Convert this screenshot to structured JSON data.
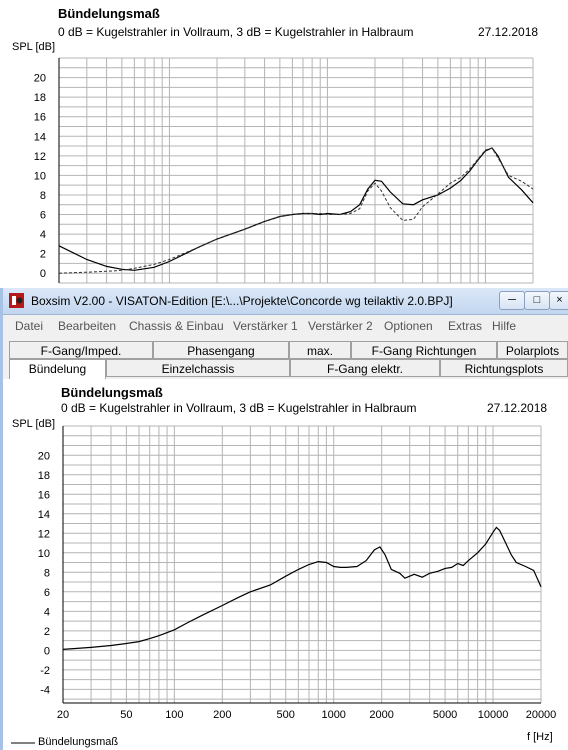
{
  "background_window": {
    "chart": {
      "title": "Bündelungsmaß",
      "subtitle": "0 dB = Kugelstrahler in Vollraum, 3 dB = Kugelstrahler in Halbraum",
      "date": "27.12.2018",
      "ylabel": "SPL [dB]"
    }
  },
  "front_window": {
    "title": "Boxsim V2.00 - VISATON-Edition [E:\\...\\Projekte\\Concorde wg teilaktiv 2.0.BPJ]",
    "buttons": {
      "minimize": "─",
      "maximize": "□",
      "close": "×"
    },
    "menu": [
      "Datei",
      "Bearbeiten",
      "Chassis & Einbau",
      "Verstärker 1",
      "Verstärker 2",
      "Optionen",
      "Extras",
      "Hilfe"
    ],
    "tabs_row1": [
      "F-Gang/Imped.",
      "Phasengang",
      "max. Pegel",
      "F-Gang Richtungen",
      "Polarplots"
    ],
    "tabs_row2": [
      "Bündelung",
      "Einzelchassis",
      "F-Gang elektr.",
      "Richtungsplots"
    ],
    "active_tab": "Bündelung",
    "chart": {
      "title": "Bündelungsmaß",
      "subtitle": "0 dB = Kugelstrahler in Vollraum, 3 dB = Kugelstrahler in Halbraum",
      "date": "27.12.2018",
      "ylabel": "SPL [dB]",
      "xlabel": "f [Hz]",
      "legend": "Bündelungsmaß"
    }
  },
  "chart_data": [
    {
      "type": "line",
      "title": "Bündelungsmaß",
      "ylabel": "SPL [dB]",
      "x_scale": "log",
      "xlim": [
        20,
        20000
      ],
      "ylim": [
        -1,
        22
      ],
      "y_ticks": [
        0,
        2,
        4,
        6,
        8,
        10,
        12,
        14,
        16,
        18,
        20
      ],
      "y_tick_labels": [
        "0",
        "2",
        "4",
        "6",
        "8",
        "10",
        "12",
        "14",
        "16",
        "18",
        "20"
      ],
      "grid": true,
      "series": [
        {
          "style": "solid",
          "x": [
            20,
            30,
            40,
            50,
            60,
            80,
            100,
            150,
            200,
            300,
            400,
            500,
            600,
            700,
            800,
            900,
            1000,
            1200,
            1400,
            1600,
            1800,
            2000,
            2200,
            2500,
            3000,
            3500,
            4000,
            5000,
            6000,
            7000,
            8000,
            9000,
            10000,
            11000,
            12000,
            14000,
            17000,
            20000
          ],
          "y": [
            2.8,
            1.4,
            0.7,
            0.4,
            0.3,
            0.6,
            1.2,
            2.6,
            3.5,
            4.5,
            5.3,
            5.8,
            6.0,
            6.1,
            6.1,
            6.0,
            6.1,
            6.0,
            6.3,
            7.0,
            8.6,
            9.5,
            9.4,
            8.3,
            7.1,
            7.0,
            7.5,
            8.0,
            8.7,
            9.5,
            10.5,
            11.6,
            12.5,
            12.8,
            12.0,
            9.8,
            8.5,
            7.2
          ]
        },
        {
          "style": "dashed",
          "x": [
            20,
            30,
            40,
            50,
            60,
            80,
            100,
            150,
            200,
            300,
            400,
            500,
            600,
            700,
            800,
            900,
            1000,
            1200,
            1400,
            1600,
            1800,
            2000,
            2200,
            2500,
            3000,
            3500,
            4000,
            5000,
            6000,
            7000,
            8000,
            9000,
            10000,
            11000,
            12000,
            14000,
            17000,
            20000
          ],
          "y": [
            0.0,
            0.1,
            0.2,
            0.3,
            0.5,
            0.9,
            1.4,
            2.6,
            3.5,
            4.5,
            5.3,
            5.8,
            6.0,
            6.1,
            6.1,
            6.1,
            6.0,
            6.0,
            6.1,
            6.6,
            8.4,
            9.2,
            8.4,
            6.7,
            5.4,
            5.5,
            6.8,
            8.1,
            9.2,
            9.8,
            10.7,
            11.7,
            12.6,
            12.8,
            11.8,
            10.0,
            9.4,
            8.6
          ]
        }
      ]
    },
    {
      "type": "line",
      "title": "Bündelungsmaß",
      "ylabel": "SPL [dB]",
      "xlabel": "f [Hz]",
      "x_scale": "log",
      "xlim": [
        20,
        20000
      ],
      "ylim": [
        -5.4,
        23
      ],
      "x_ticks": [
        20,
        50,
        100,
        200,
        500,
        1000,
        2000,
        5000,
        10000,
        20000
      ],
      "x_tick_labels": [
        "20",
        "50",
        "100",
        "200",
        "500",
        "1000",
        "2000",
        "5000",
        "10000",
        "20000"
      ],
      "y_ticks": [
        -4,
        -2,
        0,
        2,
        4,
        6,
        8,
        10,
        12,
        14,
        16,
        18,
        20
      ],
      "y_tick_labels": [
        "-4",
        "-2",
        "0",
        "2",
        "4",
        "6",
        "8",
        "10",
        "12",
        "14",
        "16",
        "18",
        "20"
      ],
      "grid": true,
      "legend": "bottom-left",
      "series": [
        {
          "name": "Bündelungsmaß",
          "style": "solid",
          "x": [
            20,
            30,
            40,
            50,
            60,
            70,
            80,
            100,
            120,
            150,
            200,
            250,
            300,
            400,
            500,
            600,
            700,
            800,
            900,
            1000,
            1100,
            1200,
            1400,
            1600,
            1800,
            1950,
            2100,
            2300,
            2600,
            2800,
            3200,
            3600,
            4000,
            4500,
            5000,
            5500,
            6000,
            6500,
            7000,
            8000,
            9000,
            10000,
            10500,
            11000,
            12000,
            13000,
            14000,
            16000,
            18000,
            20000
          ],
          "y": [
            0.1,
            0.3,
            0.5,
            0.7,
            0.9,
            1.2,
            1.5,
            2.1,
            2.8,
            3.6,
            4.6,
            5.4,
            6.0,
            6.7,
            7.6,
            8.3,
            8.8,
            9.1,
            9.0,
            8.6,
            8.5,
            8.5,
            8.6,
            9.2,
            10.3,
            10.6,
            9.8,
            8.3,
            7.9,
            7.4,
            7.8,
            7.5,
            7.9,
            8.1,
            8.4,
            8.5,
            8.9,
            8.7,
            9.2,
            10.0,
            10.9,
            12.1,
            12.6,
            12.3,
            11.0,
            9.8,
            9.0,
            8.6,
            8.2,
            6.5
          ]
        }
      ]
    }
  ]
}
